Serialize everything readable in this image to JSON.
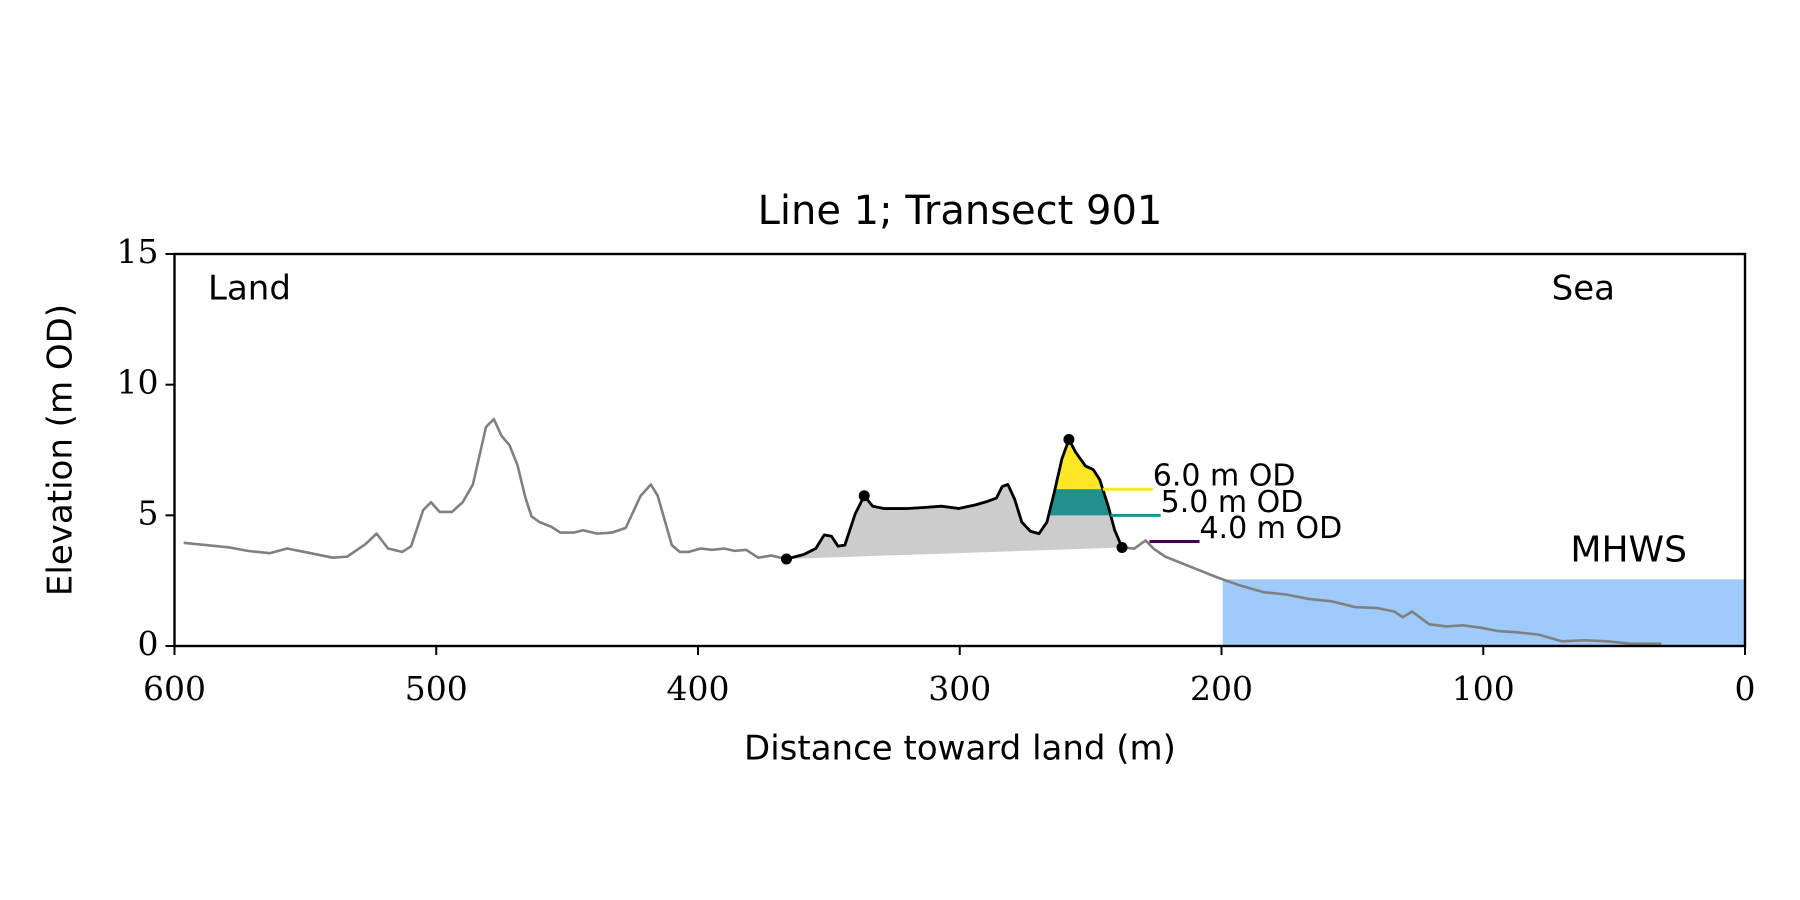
{
  "chart_data": {
    "type": "transect",
    "title": "Line 1; Transect 901",
    "x_label": "Distance toward land (m)",
    "y_label": "Elevation (m OD)",
    "annotations": {
      "left": "Land",
      "right": "Sea"
    },
    "xlim": [
      600,
      0
    ],
    "ylim": [
      0,
      15
    ],
    "xticks": [
      600,
      500,
      400,
      300,
      200,
      100,
      0
    ],
    "yticks": [
      0,
      5,
      10,
      15
    ],
    "profile": {
      "color": "#808080",
      "x": [
        596.5,
        579,
        572,
        563.6,
        557,
        550.4,
        539.5,
        534,
        527,
        522.8,
        518.4,
        513,
        509.6,
        505,
        502,
        498.7,
        494,
        489.9,
        486,
        481,
        478,
        475,
        472,
        469,
        466,
        463.6,
        460.5,
        456,
        452.6,
        447.4,
        443.9,
        438.6,
        432.9,
        427.6,
        421.9,
        418,
        415.4,
        410,
        407,
        403.5,
        399,
        394.7,
        390,
        386,
        381.6,
        377,
        372,
        366.2,
        359.6,
        355,
        351.8,
        349,
        346.5,
        343.9,
        340,
        336.5,
        333.3,
        329,
        320,
        313.6,
        307,
        300.4,
        294,
        289.5,
        286,
        283.8,
        281.6,
        279,
        276.3,
        273,
        269.7,
        266.7,
        264,
        261,
        258.3,
        255.7,
        252,
        249,
        246.5,
        243.4,
        240.8,
        238,
        233.3,
        229,
        226,
        221.5,
        215,
        208.3,
        201.8,
        193,
        184,
        175.4,
        166.7,
        157.9,
        149,
        140.4,
        134,
        130.7,
        127.2,
        120.6,
        114,
        107.5,
        101,
        94.3,
        87.7,
        79,
        70,
        61.4,
        52.6,
        43.9,
        32
      ],
      "values": [
        3.95,
        3.77,
        3.64,
        3.55,
        3.73,
        3.6,
        3.38,
        3.42,
        3.9,
        4.3,
        3.73,
        3.6,
        3.82,
        5.2,
        5.5,
        5.13,
        5.13,
        5.5,
        6.18,
        8.38,
        8.68,
        8.03,
        7.68,
        6.93,
        5.7,
        4.96,
        4.74,
        4.56,
        4.34,
        4.34,
        4.43,
        4.3,
        4.34,
        4.52,
        5.75,
        6.18,
        5.75,
        3.86,
        3.6,
        3.6,
        3.73,
        3.68,
        3.73,
        3.64,
        3.68,
        3.38,
        3.46,
        3.33,
        3.5,
        3.73,
        4.25,
        4.2,
        3.82,
        3.86,
        5.04,
        5.75,
        5.35,
        5.26,
        5.26,
        5.3,
        5.35,
        5.26,
        5.4,
        5.53,
        5.66,
        6.1,
        6.18,
        5.61,
        4.74,
        4.39,
        4.3,
        4.74,
        5.83,
        7.15,
        7.9,
        7.41,
        6.89,
        6.75,
        6.36,
        5.39,
        4.43,
        3.77,
        3.73,
        4.04,
        3.73,
        3.42,
        3.16,
        2.89,
        2.63,
        2.32,
        2.06,
        1.97,
        1.8,
        1.71,
        1.49,
        1.45,
        1.32,
        1.1,
        1.32,
        0.83,
        0.75,
        0.79,
        0.7,
        0.57,
        0.53,
        0.44,
        0.18,
        0.22,
        0.18,
        0.09,
        0.09
      ]
    },
    "dune": {
      "color": "#000000",
      "fill": "#cccccc",
      "x": [
        366.2,
        359.6,
        355,
        351.8,
        349,
        346.5,
        343.9,
        340,
        336.5,
        333.3,
        329,
        320,
        313.6,
        307,
        300.4,
        294,
        289.5,
        286,
        283.8,
        281.6,
        279,
        276.3,
        273,
        269.7,
        266.7,
        264,
        261,
        258.3,
        255.7,
        252,
        249,
        246.5,
        243.4,
        240.8,
        238
      ],
      "values": [
        3.33,
        3.5,
        3.73,
        4.25,
        4.2,
        3.82,
        3.86,
        5.04,
        5.75,
        5.35,
        5.26,
        5.26,
        5.3,
        5.35,
        5.26,
        5.4,
        5.53,
        5.66,
        6.1,
        6.18,
        5.61,
        4.74,
        4.39,
        4.3,
        4.74,
        5.83,
        7.15,
        7.9,
        7.41,
        6.89,
        6.75,
        6.36,
        5.39,
        4.43,
        3.77
      ]
    },
    "points": {
      "color": "#000000",
      "x": [
        366.2,
        336.5,
        258.3,
        238
      ],
      "values": [
        3.33,
        5.75,
        7.9,
        3.77
      ]
    },
    "thresholds": [
      {
        "name": "6.0 m OD",
        "value": 6,
        "color": "#fde725",
        "fill": true
      },
      {
        "name": "5.0 m OD",
        "value": 5,
        "color": "#21918c",
        "fill": true
      },
      {
        "name": "4.0 m OD",
        "value": 4,
        "color": "#440154",
        "fill": false
      }
    ],
    "mhws": {
      "name": "MHWS",
      "value": 2.55,
      "color": "#9ecbfa",
      "label_color": "#6b9ccc"
    }
  }
}
